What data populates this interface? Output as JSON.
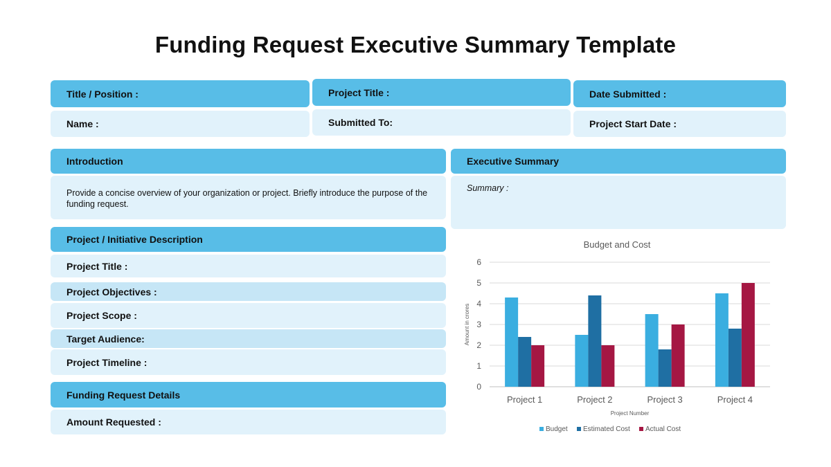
{
  "page": {
    "title": "Funding Request Executive Summary Template"
  },
  "header_fields": {
    "title_position": "Title / Position :",
    "project_title": "Project Title :",
    "date_submitted": "Date Submitted :",
    "name": "Name :",
    "submitted_to": "Submitted To:",
    "project_start_date": "Project Start Date :"
  },
  "introduction": {
    "heading": "Introduction",
    "text": "Provide a concise overview of your organization or project. Briefly introduce the purpose of the funding request."
  },
  "executive_summary": {
    "heading": "Executive Summary",
    "summary_label": "Summary :"
  },
  "project_description": {
    "heading": "Project / Initiative Description",
    "rows": [
      "Project Title :",
      "Project Objectives :",
      "Project Scope :",
      "Target Audience:",
      "Project Timeline :"
    ]
  },
  "funding_details": {
    "heading": "Funding Request Details",
    "amount_label": "Amount Requested :"
  },
  "chart_data": {
    "type": "bar",
    "title": "Budget and Cost",
    "xlabel": "Project Number",
    "ylabel": "Amount in crores",
    "ylim": [
      0,
      6
    ],
    "yticks": [
      "0",
      "1",
      "2",
      "3",
      "4",
      "5",
      "6"
    ],
    "categories": [
      "Project 1",
      "Project 2",
      "Project 3",
      "Project 4"
    ],
    "series": [
      {
        "name": "Budget",
        "values": [
          4.3,
          2.5,
          3.5,
          4.5
        ],
        "color": "#3aaee0"
      },
      {
        "name": "Estimated Cost",
        "values": [
          2.4,
          4.4,
          1.8,
          2.8
        ],
        "color": "#1f6fa3"
      },
      {
        "name": "Actual Cost",
        "values": [
          2.0,
          2.0,
          3.0,
          5.0
        ],
        "color": "#a51743"
      }
    ],
    "grid": true,
    "legend": "bottom"
  }
}
